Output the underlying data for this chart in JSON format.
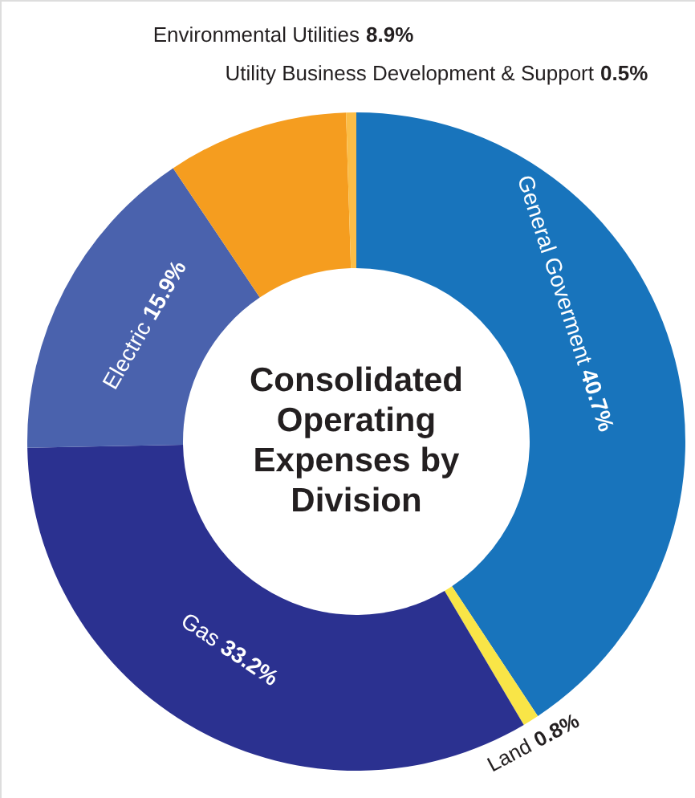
{
  "chart_data": {
    "type": "donut",
    "title": "Consolidated Operating Expenses by Division",
    "categories": [
      "General Goverment",
      "Land",
      "Gas",
      "Electric",
      "Environmental Utilities",
      "Utility Business Development & Support"
    ],
    "values": [
      40.7,
      0.8,
      33.2,
      15.9,
      8.9,
      0.5
    ],
    "value_labels": [
      "40.7%",
      "0.8%",
      "33.2%",
      "15.9%",
      "8.9%",
      "0.5%"
    ],
    "colors": [
      "#1874bc",
      "#f9e547",
      "#2b3190",
      "#4a62ad",
      "#f59d1f",
      "#fbbd47"
    ]
  }
}
